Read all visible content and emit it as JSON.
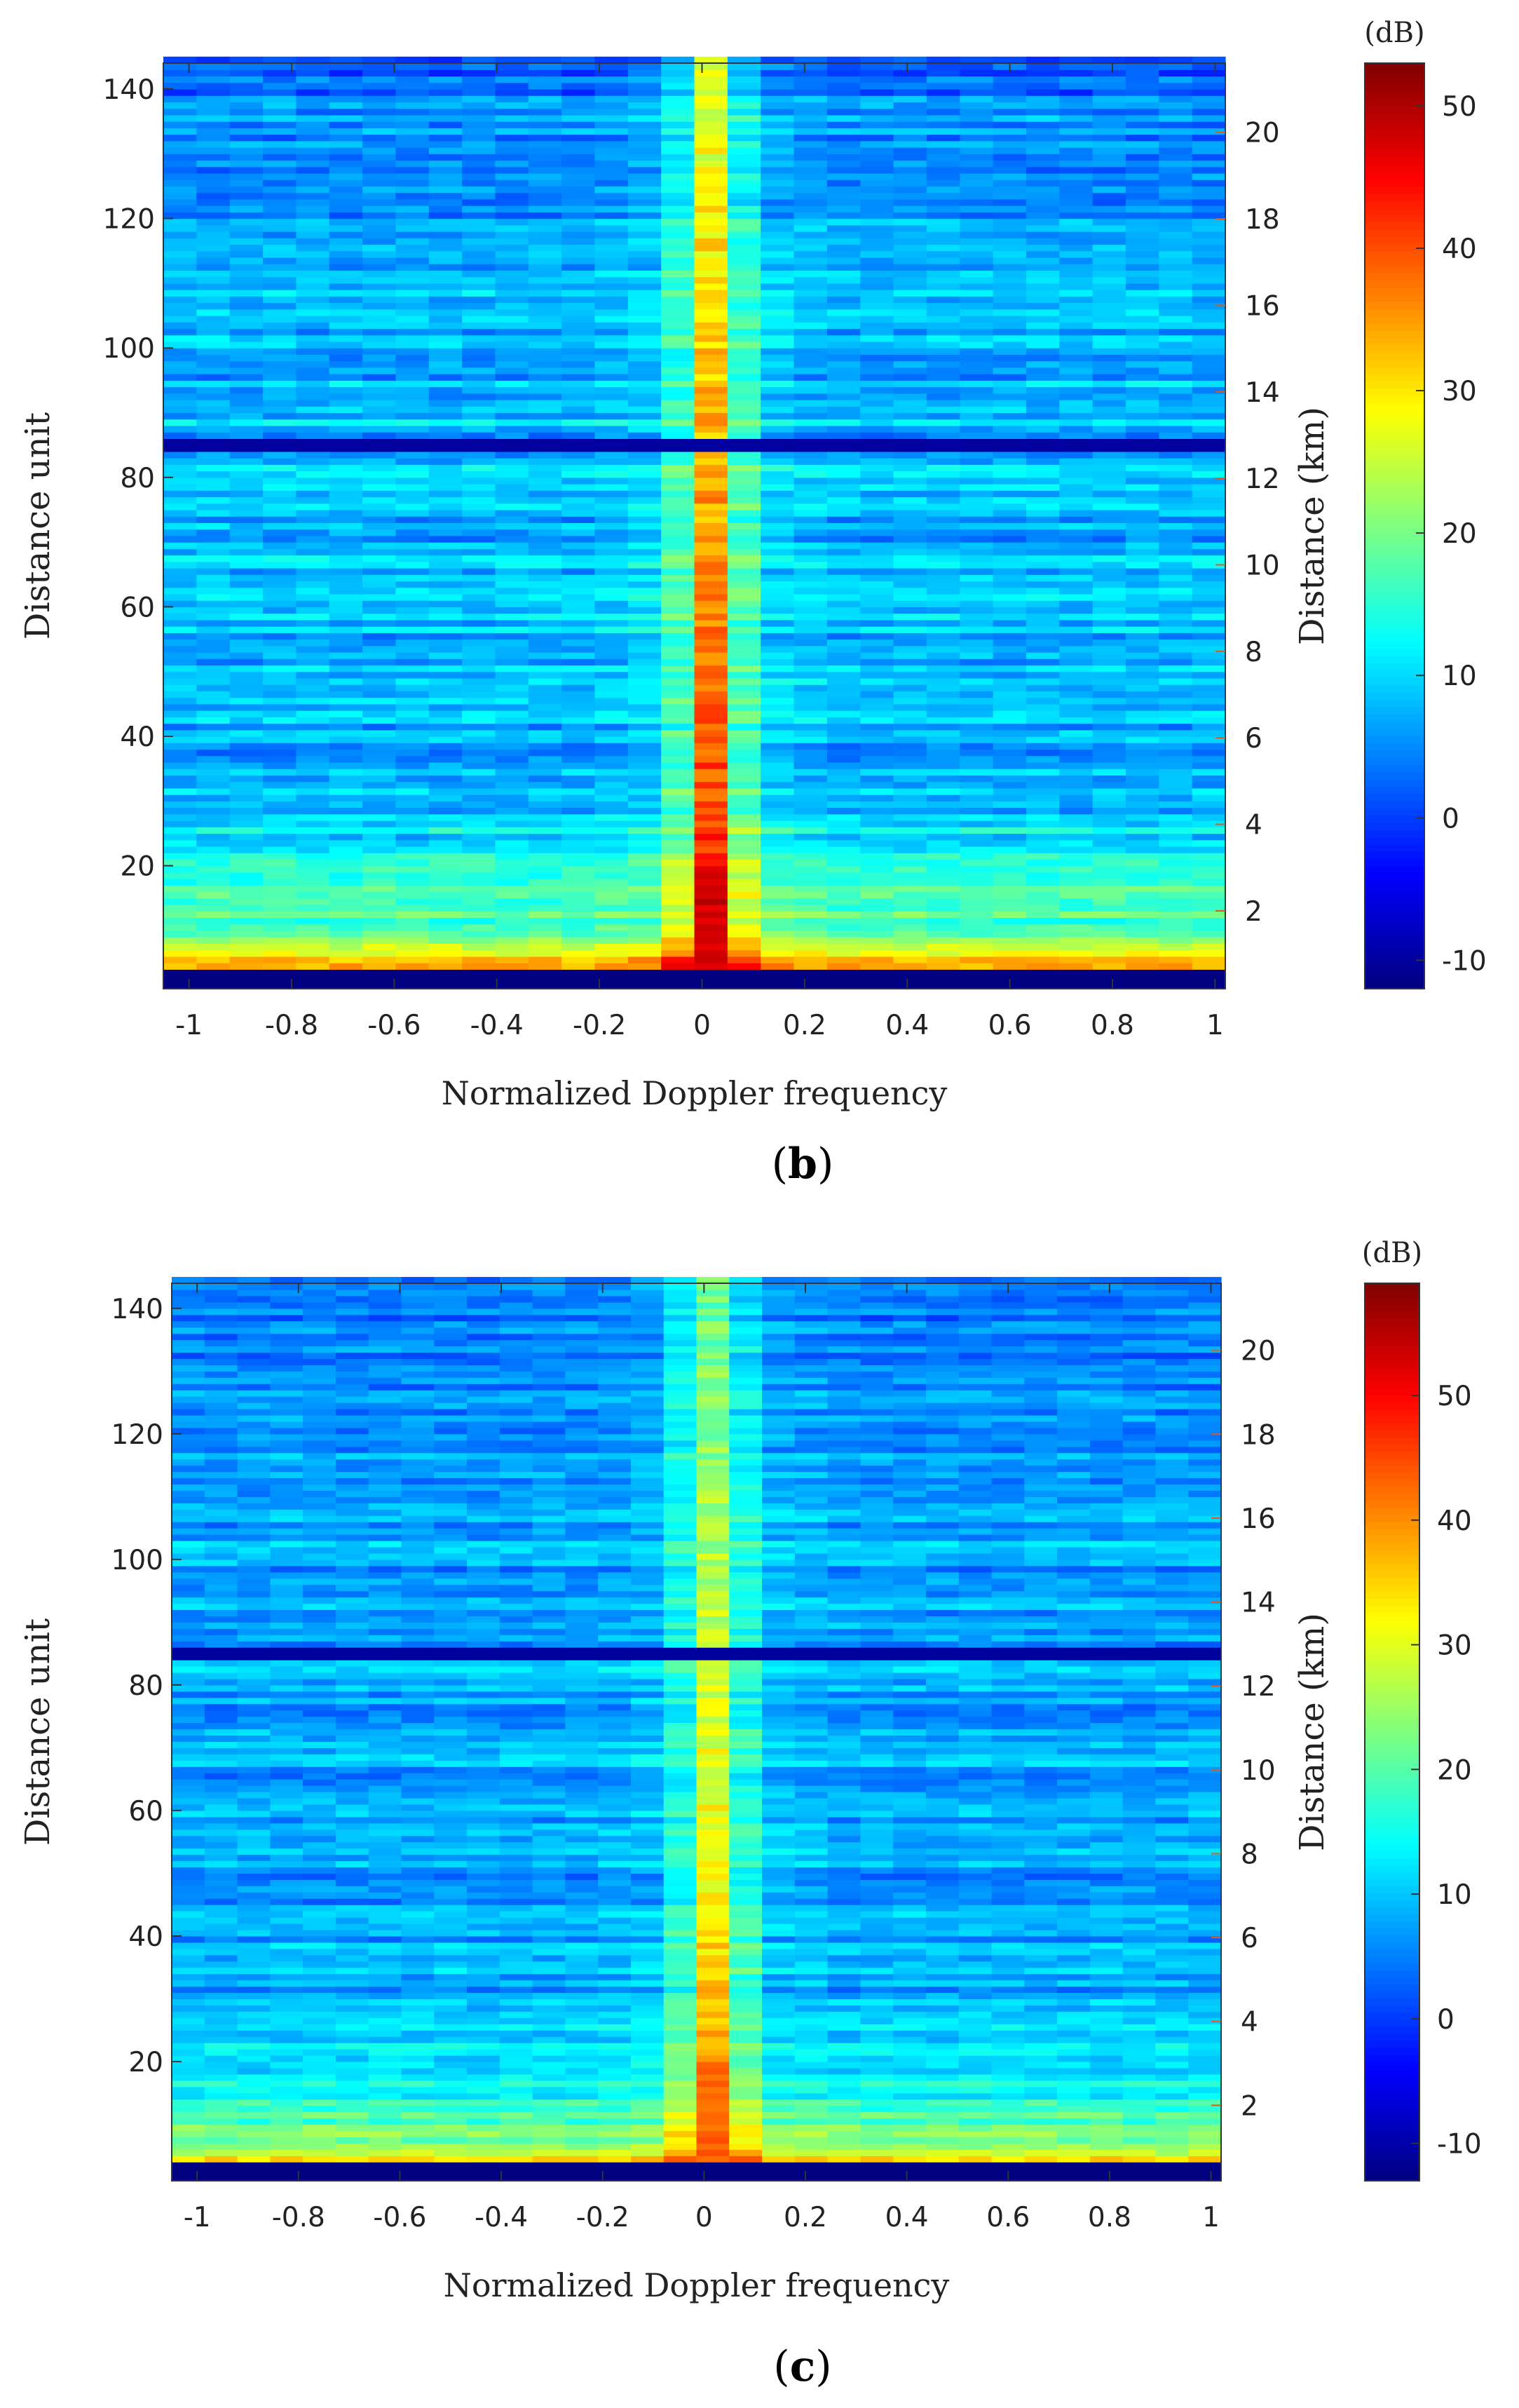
{
  "chart_data": [
    {
      "type": "heatmap",
      "panel_label": "b",
      "xlabel": "Normalized Doppler frequency",
      "ylabel": "Distance unit",
      "y2label": "Distance (km)",
      "colorbar_label": "(dB)",
      "xlim": [
        -1.05,
        1.02
      ],
      "ylim": [
        1,
        144
      ],
      "y2lim": [
        0.2,
        21.6
      ],
      "clim": [
        -12,
        53
      ],
      "x_ticks": [
        "-1",
        "-0.8",
        "-0.6",
        "-0.4",
        "-0.2",
        "0",
        "0.2",
        "0.4",
        "0.6",
        "0.8",
        "1"
      ],
      "y_ticks": [
        "20",
        "40",
        "60",
        "80",
        "100",
        "120",
        "140"
      ],
      "y2_ticks": [
        "2",
        "4",
        "6",
        "8",
        "10",
        "12",
        "14",
        "16",
        "18",
        "20"
      ],
      "colorbar_ticks": [
        "-10",
        "0",
        "10",
        "20",
        "30",
        "40",
        "50"
      ],
      "description_values": {
        "zero_doppler_peak_dB": 50,
        "near_range_clutter_dB": 35,
        "background_dB": 8,
        "dark_row_distance_unit": 85,
        "empty_bottom_rows_dB": -12
      }
    },
    {
      "type": "heatmap",
      "panel_label": "c",
      "xlabel": "Normalized Doppler frequency",
      "ylabel": "Distance unit",
      "y2label": "Distance (km)",
      "colorbar_label": "(dB)",
      "xlim": [
        -1.05,
        1.02
      ],
      "ylim": [
        1,
        144
      ],
      "y2lim": [
        0.2,
        21.6
      ],
      "clim": [
        -13,
        59
      ],
      "x_ticks": [
        "-1",
        "-0.8",
        "-0.6",
        "-0.4",
        "-0.2",
        "0",
        "0.2",
        "0.4",
        "0.6",
        "0.8",
        "1"
      ],
      "y_ticks": [
        "20",
        "40",
        "60",
        "80",
        "100",
        "120",
        "140"
      ],
      "y2_ticks": [
        "2",
        "4",
        "6",
        "8",
        "10",
        "12",
        "14",
        "16",
        "18",
        "20"
      ],
      "colorbar_ticks": [
        "-10",
        "0",
        "10",
        "20",
        "30",
        "40",
        "50"
      ],
      "description_values": {
        "zero_doppler_peak_dB": 45,
        "near_range_clutter_dB": 38,
        "background_dB": 8,
        "dark_row_distance_unit": 85,
        "empty_bottom_rows_dB": -13
      }
    }
  ]
}
